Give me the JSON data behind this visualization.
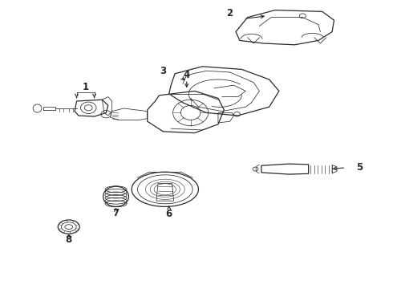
{
  "bg_color": "#ffffff",
  "line_color": "#2a2a2a",
  "fig_width": 4.9,
  "fig_height": 3.6,
  "dpi": 100,
  "label_fontsize": 8.5,
  "arrow_lw": 0.8,
  "parts_lw": 0.9,
  "thin_lw": 0.55,
  "label_positions": {
    "1": [
      0.195,
      0.685,
      0.195,
      0.72
    ],
    "2": [
      0.62,
      0.935,
      0.585,
      0.955
    ],
    "3": [
      0.46,
      0.735,
      0.415,
      0.755
    ],
    "4": [
      0.465,
      0.695,
      0.465,
      0.73
    ],
    "5": [
      0.88,
      0.42,
      0.915,
      0.42
    ],
    "6": [
      0.435,
      0.285,
      0.435,
      0.245
    ],
    "7": [
      0.325,
      0.295,
      0.325,
      0.255
    ],
    "8": [
      0.175,
      0.2,
      0.175,
      0.155
    ]
  }
}
